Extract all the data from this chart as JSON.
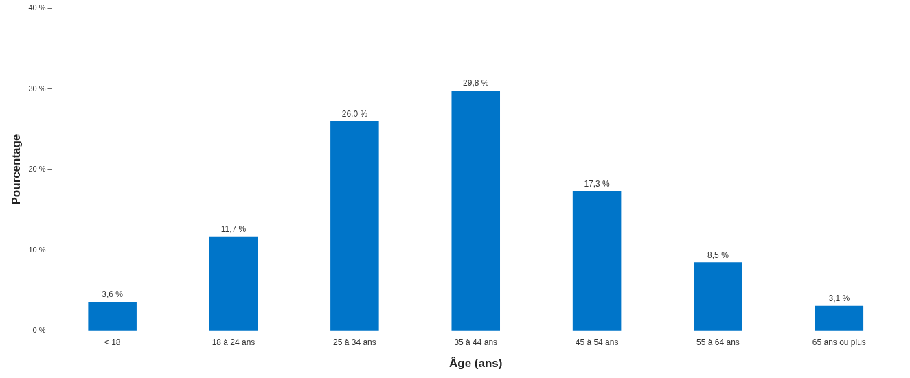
{
  "chart_data": {
    "type": "bar",
    "xlabel": "Âge (ans)",
    "ylabel": "Pourcentage",
    "categories": [
      "< 18",
      "18 à 24 ans",
      "25 à 34 ans",
      "35 à 44 ans",
      "45 à 54 ans",
      "55 à 64 ans",
      "65 ans ou plus"
    ],
    "values": [
      3.6,
      11.7,
      26.0,
      29.8,
      17.3,
      8.5,
      3.1
    ],
    "value_labels": [
      "3,6 %",
      "11,7 %",
      "26,0 %",
      "29,8 %",
      "17,3 %",
      "8,5 %",
      "3,1 %"
    ],
    "color": "#0075c9",
    "ylim": [
      0,
      40
    ],
    "yticks": [
      {
        "value": 0,
        "label": "0 %"
      },
      {
        "value": 10,
        "label": "10 %"
      },
      {
        "value": 20,
        "label": "20 %"
      },
      {
        "value": 30,
        "label": "30 %"
      },
      {
        "value": 40,
        "label": "40 %"
      }
    ],
    "grid": false,
    "legend": false
  }
}
